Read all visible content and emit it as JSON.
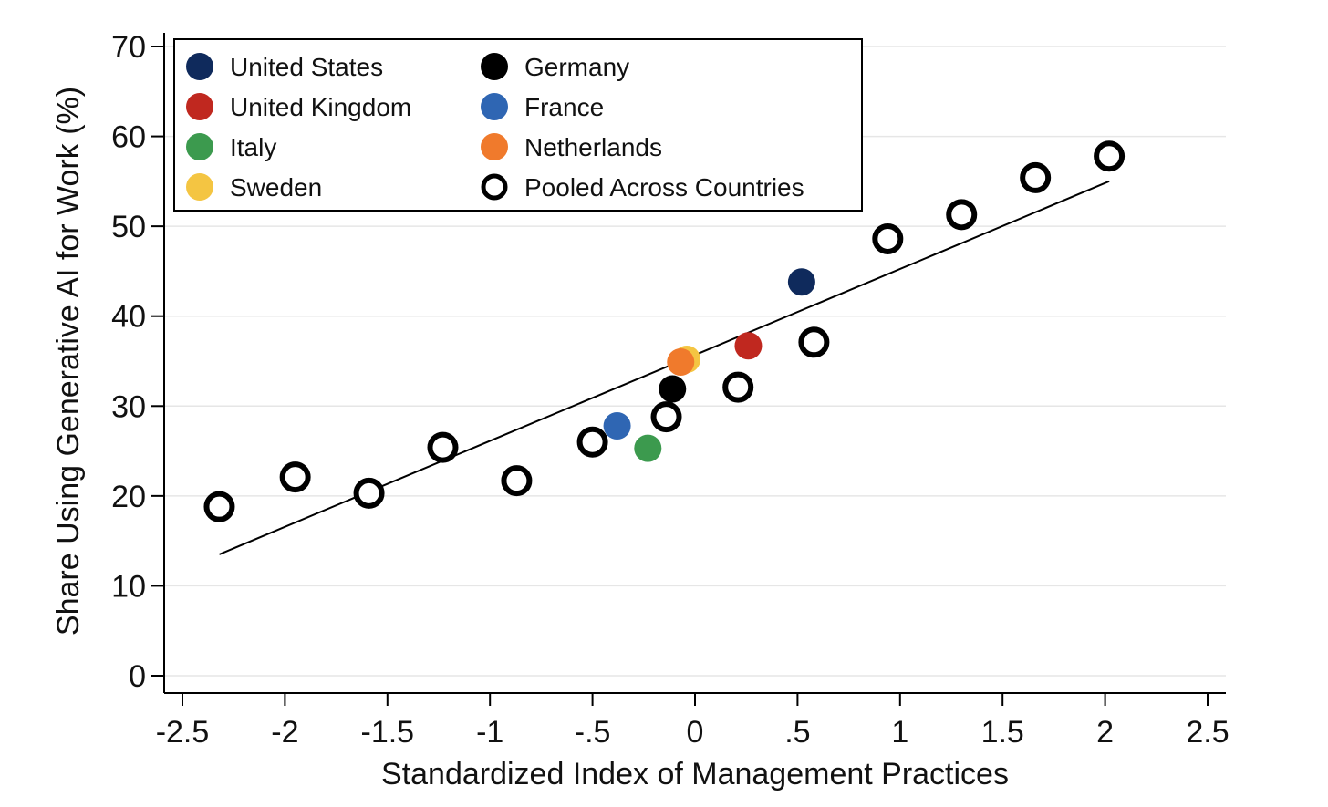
{
  "chart_data": {
    "type": "scatter",
    "xlabel": "Standardized Index of Management Practices",
    "ylabel": "Share Using Generative AI for Work (%)",
    "xlim": [
      -2.5,
      2.5
    ],
    "ylim": [
      0,
      70
    ],
    "xticks": [
      -2.5,
      -2,
      -1.5,
      -1,
      -0.5,
      0,
      0.5,
      1,
      1.5,
      2,
      2.5
    ],
    "xtick_labels": [
      "-2.5",
      "-2",
      "-1.5",
      "-1",
      "-.5",
      "0",
      ".5",
      "1",
      "1.5",
      "2",
      "2.5"
    ],
    "yticks": [
      0,
      10,
      20,
      30,
      40,
      50,
      60,
      70
    ],
    "ytick_labels": [
      "0",
      "10",
      "20",
      "30",
      "40",
      "50",
      "60",
      "70"
    ],
    "grid": "horizontal",
    "legend_position": "top-left",
    "series": [
      {
        "name": "United States",
        "color": "#0f2a5c",
        "style": "filled",
        "points": [
          [
            0.52,
            43.8
          ]
        ]
      },
      {
        "name": "United Kingdom",
        "color": "#c0281f",
        "style": "filled",
        "points": [
          [
            0.26,
            36.7
          ]
        ]
      },
      {
        "name": "Italy",
        "color": "#3c9a4e",
        "style": "filled",
        "points": [
          [
            -0.23,
            25.3
          ]
        ]
      },
      {
        "name": "Sweden",
        "color": "#f4c542",
        "style": "filled",
        "points": [
          [
            -0.04,
            35.2
          ]
        ]
      },
      {
        "name": "Germany",
        "color": "#000000",
        "style": "filled",
        "points": [
          [
            -0.11,
            31.9
          ]
        ]
      },
      {
        "name": "France",
        "color": "#2f66b3",
        "style": "filled",
        "points": [
          [
            -0.38,
            27.8
          ]
        ]
      },
      {
        "name": "Netherlands",
        "color": "#f07a2c",
        "style": "filled",
        "points": [
          [
            -0.07,
            34.9
          ]
        ]
      },
      {
        "name": "Pooled Across Countries",
        "color": "#000000",
        "style": "hollow",
        "points": [
          [
            -2.32,
            18.8
          ],
          [
            -1.95,
            22.1
          ],
          [
            -1.59,
            20.3
          ],
          [
            -1.23,
            25.4
          ],
          [
            -0.87,
            21.7
          ],
          [
            -0.5,
            26.0
          ],
          [
            -0.14,
            28.8
          ],
          [
            0.21,
            32.1
          ],
          [
            0.58,
            37.1
          ],
          [
            0.94,
            48.6
          ],
          [
            1.3,
            51.3
          ],
          [
            1.66,
            55.4
          ],
          [
            2.02,
            57.8
          ]
        ]
      }
    ],
    "fit_line": {
      "x": [
        -2.32,
        2.02
      ],
      "y": [
        13.5,
        55.0
      ]
    }
  }
}
